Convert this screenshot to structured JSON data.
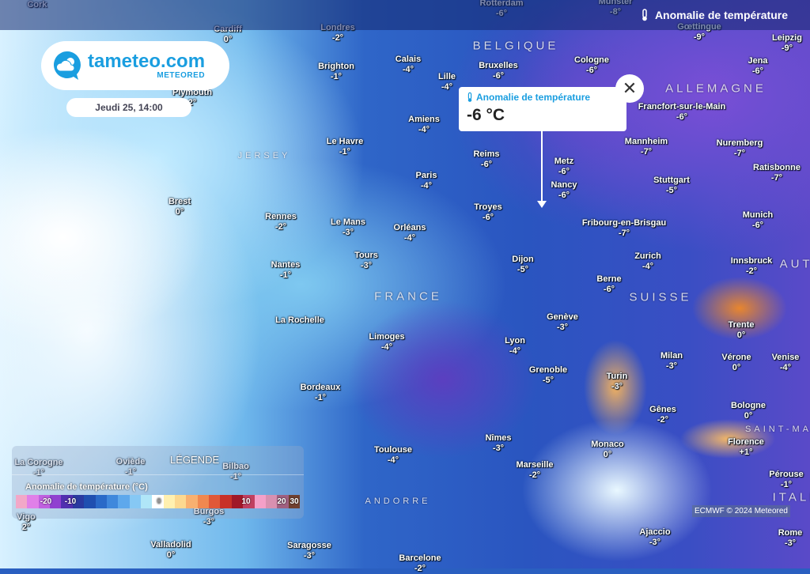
{
  "header": {
    "layer_title": "Anomalie de température",
    "layer_icon": "thermometer-icon"
  },
  "logo": {
    "name": "tameteo.com",
    "sub": "METEORED"
  },
  "date": "Jeudi 25, 14:00",
  "tooltip": {
    "title": "Anomalie de température",
    "value": "-6 °C",
    "close_icon": "close-icon"
  },
  "legend": {
    "title": "LÉGENDE",
    "subtitle": "Anomalie de température (°C)",
    "ticks": [
      "-20",
      "-10",
      "0",
      "10",
      "20",
      "30"
    ],
    "colors": [
      "#f2a8c8",
      "#e080e8",
      "#c060e0",
      "#9040d0",
      "#5030b0",
      "#2a3aa0",
      "#1f4fb0",
      "#2a6ac8",
      "#3f88dc",
      "#5ea8ec",
      "#86c8f4",
      "#b0e6f8",
      "#ffffff",
      "#fff0b0",
      "#fcd890",
      "#f8b070",
      "#f08850",
      "#e05838",
      "#c83028",
      "#a01828",
      "#c04060",
      "#f4a0c8",
      "#d890b0",
      "#a06080",
      "#704030"
    ]
  },
  "credit": "ECMWF © 2024 Meteored",
  "countries": [
    "BELGIQUE",
    "ALLEMAGNE",
    "FRANCE",
    "SUISSE",
    "AUTR",
    "ITALI",
    "ANDORRE",
    "JERSEY",
    "SAINT-MAR"
  ],
  "cities": [
    {
      "n": "Cork",
      "t": ""
    },
    {
      "n": "Cardiff",
      "t": "0°"
    },
    {
      "n": "Londres",
      "t": "-2°"
    },
    {
      "n": "Rotterdam",
      "t": "-6°"
    },
    {
      "n": "Munster",
      "t": "-8°"
    },
    {
      "n": "Gœttingue",
      "t": "-9°"
    },
    {
      "n": "Leipzig",
      "t": "-9°"
    },
    {
      "n": "Calais",
      "t": "-4°"
    },
    {
      "n": "Bruxelles",
      "t": "-6°"
    },
    {
      "n": "Cologne",
      "t": "-6°"
    },
    {
      "n": "Jena",
      "t": "-6°"
    },
    {
      "n": "Brighton",
      "t": "-1°"
    },
    {
      "n": "Plymouth",
      "t": "2°"
    },
    {
      "n": "Lille",
      "t": "-4°"
    },
    {
      "n": "Francfort-sur-le-Main",
      "t": "-6°"
    },
    {
      "n": "Amiens",
      "t": "-4°"
    },
    {
      "n": "Le Havre",
      "t": "-1°"
    },
    {
      "n": "Mannheim",
      "t": "-7°"
    },
    {
      "n": "Nuremberg",
      "t": "-7°"
    },
    {
      "n": "Reims",
      "t": "-6°"
    },
    {
      "n": "Metz",
      "t": "-6°"
    },
    {
      "n": "Ratisbonne",
      "t": "-7°"
    },
    {
      "n": "Paris",
      "t": "-4°"
    },
    {
      "n": "Stuttgart",
      "t": "-5°"
    },
    {
      "n": "Nancy",
      "t": "-6°"
    },
    {
      "n": "Brest",
      "t": "0°"
    },
    {
      "n": "Troyes",
      "t": "-6°"
    },
    {
      "n": "Munich",
      "t": "-6°"
    },
    {
      "n": "Rennes",
      "t": "-2°"
    },
    {
      "n": "Le Mans",
      "t": "-3°"
    },
    {
      "n": "Orléans",
      "t": "-4°"
    },
    {
      "n": "Fribourg-en-Brisgau",
      "t": "-7°"
    },
    {
      "n": "Tours",
      "t": "-3°"
    },
    {
      "n": "Zurich",
      "t": "-4°"
    },
    {
      "n": "Innsbruck",
      "t": "-2°"
    },
    {
      "n": "Dijon",
      "t": "-5°"
    },
    {
      "n": "Nantes",
      "t": "-1°"
    },
    {
      "n": "Berne",
      "t": "-6°"
    },
    {
      "n": "La Rochelle",
      "t": ""
    },
    {
      "n": "Genève",
      "t": "-3°"
    },
    {
      "n": "Trente",
      "t": "0°"
    },
    {
      "n": "Limoges",
      "t": "-4°"
    },
    {
      "n": "Lyon",
      "t": "-4°"
    },
    {
      "n": "Milan",
      "t": "-3°"
    },
    {
      "n": "Vérone",
      "t": "0°"
    },
    {
      "n": "Venise",
      "t": "-4°"
    },
    {
      "n": "Grenoble",
      "t": "-5°"
    },
    {
      "n": "Turin",
      "t": "-3°"
    },
    {
      "n": "Bordeaux",
      "t": "-1°"
    },
    {
      "n": "Bologne",
      "t": "0°"
    },
    {
      "n": "Gênes",
      "t": "-2°"
    },
    {
      "n": "Florence",
      "t": "+1°"
    },
    {
      "n": "Monaco",
      "t": "0°"
    },
    {
      "n": "Nîmes",
      "t": "-3°"
    },
    {
      "n": "Toulouse",
      "t": "-4°"
    },
    {
      "n": "Marseille",
      "t": "-2°"
    },
    {
      "n": "La Corogne",
      "t": "-1°"
    },
    {
      "n": "Oviède",
      "t": "-1°"
    },
    {
      "n": "Bilbao",
      "t": "-1°"
    },
    {
      "n": "Pérouse",
      "t": "-1°"
    },
    {
      "n": "Burgos",
      "t": "-3°"
    },
    {
      "n": "Vigo",
      "t": "2°"
    },
    {
      "n": "Ajaccio",
      "t": "-3°"
    },
    {
      "n": "Rome",
      "t": "-3°"
    },
    {
      "n": "Valladolid",
      "t": "0°"
    },
    {
      "n": "Saragosse",
      "t": "-3°"
    },
    {
      "n": "Barcelone",
      "t": "-2°"
    }
  ]
}
